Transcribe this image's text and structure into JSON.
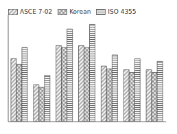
{
  "chart_data": {
    "type": "bar",
    "categories": [
      null,
      null,
      null,
      null,
      null,
      null,
      null
    ],
    "series": [
      {
        "name": "ASCE 7-02",
        "color": "#444444",
        "values": [
          0.68,
          0.4,
          0.82,
          0.82,
          0.6,
          0.56,
          0.56
        ]
      },
      {
        "name": "Korean",
        "color": "#444444",
        "values": [
          0.62,
          0.37,
          0.8,
          0.8,
          0.57,
          0.53,
          0.53
        ]
      },
      {
        "name": "ISO 4355",
        "color": "#444444",
        "values": [
          0.8,
          0.5,
          1.0,
          1.05,
          0.72,
          0.68,
          0.65
        ]
      }
    ],
    "ylim": [
      0,
      1.15
    ],
    "yticks": [],
    "legend": "upper left",
    "tick_labels": false,
    "grid": false
  }
}
